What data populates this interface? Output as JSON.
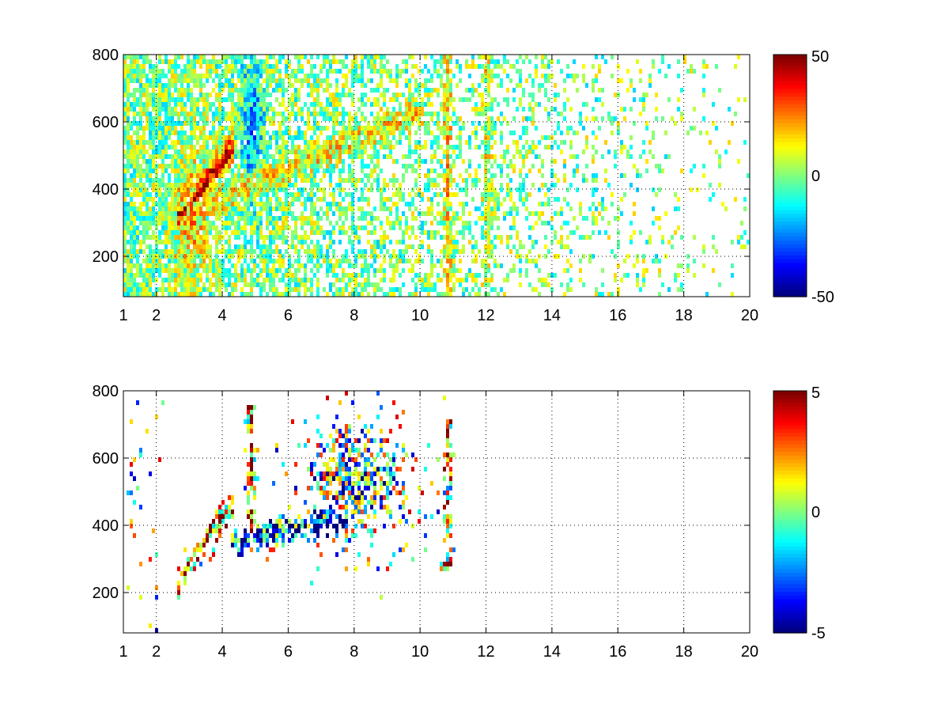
{
  "figure": {
    "background": "#ffffff",
    "colormap": "jet"
  },
  "chart_data": [
    {
      "type": "heatmap",
      "title": "",
      "xlabel": "",
      "ylabel": "",
      "xlim": [
        1,
        20
      ],
      "ylim": [
        80,
        800
      ],
      "x_ticks": [
        1,
        2,
        4,
        6,
        8,
        10,
        12,
        14,
        16,
        18,
        20
      ],
      "y_ticks": [
        200,
        400,
        600,
        800
      ],
      "grid": true,
      "grid_style": "dotted",
      "colorbar": {
        "position": "right",
        "clim": [
          -50,
          50
        ],
        "ticks": [
          -50,
          0,
          50
        ]
      },
      "description_of_values": "sparse heatmap, blank (NaN) cells white; dense band from ~(2.7, 340) rising to ~(9, 620), vertical streaks near 10.8 and 12",
      "features": [
        {
          "kind": "blob",
          "x": [
            2.5,
            3.5
          ],
          "y": [
            150,
            500
          ],
          "value": 18
        },
        {
          "kind": "ridge",
          "x": [
            2.7,
            4.2
          ],
          "y": [
            330,
            520
          ],
          "value": 40
        },
        {
          "kind": "ridge",
          "x": [
            4.0,
            9.5
          ],
          "y": [
            380,
            620
          ],
          "value": 12
        },
        {
          "kind": "blob",
          "x": [
            4.5,
            5.2
          ],
          "y": [
            380,
            800
          ],
          "value": -20
        },
        {
          "kind": "streak",
          "x": 10.8,
          "y": [
            80,
            800
          ],
          "value": 15
        },
        {
          "kind": "streak",
          "x": 12.0,
          "y": [
            80,
            800
          ],
          "value": 8
        }
      ]
    },
    {
      "type": "heatmap",
      "title": "",
      "xlabel": "",
      "ylabel": "",
      "xlim": [
        1,
        20
      ],
      "ylim": [
        80,
        800
      ],
      "x_ticks": [
        1,
        2,
        4,
        6,
        8,
        10,
        12,
        14,
        16,
        18,
        20
      ],
      "y_ticks": [
        200,
        400,
        600,
        800
      ],
      "grid": true,
      "grid_style": "dotted",
      "colorbar": {
        "position": "right",
        "clim": [
          -5,
          5
        ],
        "ticks": [
          -5,
          0,
          5
        ]
      },
      "description_of_values": "very sparse heatmap; points concentrated along band from ~(2.7, 300) to ~(8, 550), strong values near x=4.8, thin column at x=10.8",
      "features": [
        {
          "kind": "ridge",
          "x": [
            2.7,
            4.2
          ],
          "y": [
            260,
            460
          ],
          "value": 3
        },
        {
          "kind": "column",
          "x": 4.85,
          "y": [
            380,
            760
          ],
          "value": 4
        },
        {
          "kind": "ridge",
          "x": [
            4.5,
            7.5
          ],
          "y": [
            360,
            430
          ],
          "value": -3
        },
        {
          "kind": "blob",
          "x": [
            6.5,
            9.5
          ],
          "y": [
            380,
            680
          ],
          "value": -1
        },
        {
          "kind": "streak",
          "x": 10.8,
          "y": [
            270,
            720
          ],
          "value": 2
        }
      ]
    }
  ]
}
